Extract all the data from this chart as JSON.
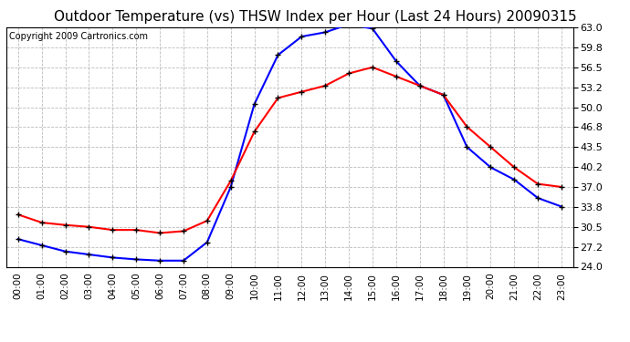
{
  "title": "Outdoor Temperature (vs) THSW Index per Hour (Last 24 Hours) 20090315",
  "copyright": "Copyright 2009 Cartronics.com",
  "x_labels": [
    "00:00",
    "01:00",
    "02:00",
    "03:00",
    "04:00",
    "05:00",
    "06:00",
    "07:00",
    "08:00",
    "09:00",
    "10:00",
    "11:00",
    "12:00",
    "13:00",
    "14:00",
    "15:00",
    "16:00",
    "17:00",
    "18:00",
    "19:00",
    "20:00",
    "21:00",
    "22:00",
    "23:00"
  ],
  "temp_red": [
    32.5,
    31.2,
    30.8,
    30.5,
    30.0,
    30.0,
    29.5,
    29.8,
    31.5,
    38.0,
    46.0,
    51.5,
    52.5,
    53.5,
    55.5,
    56.5,
    55.0,
    53.5,
    52.0,
    46.8,
    43.5,
    40.2,
    37.5,
    37.0
  ],
  "thsw_blue": [
    28.5,
    27.5,
    26.5,
    26.0,
    25.5,
    25.2,
    25.0,
    25.0,
    28.0,
    37.0,
    50.5,
    58.5,
    61.5,
    62.2,
    63.5,
    62.8,
    57.5,
    53.5,
    52.0,
    43.5,
    40.2,
    38.2,
    35.2,
    33.8
  ],
  "ylim": [
    24.0,
    63.0
  ],
  "yticks": [
    24.0,
    27.2,
    30.5,
    33.8,
    37.0,
    40.2,
    43.5,
    46.8,
    50.0,
    53.2,
    56.5,
    59.8,
    63.0
  ],
  "red_color": "#ff0000",
  "blue_color": "#0000ff",
  "bg_color": "#ffffff",
  "grid_color": "#bbbbbb",
  "title_fontsize": 11,
  "copyright_fontsize": 7
}
